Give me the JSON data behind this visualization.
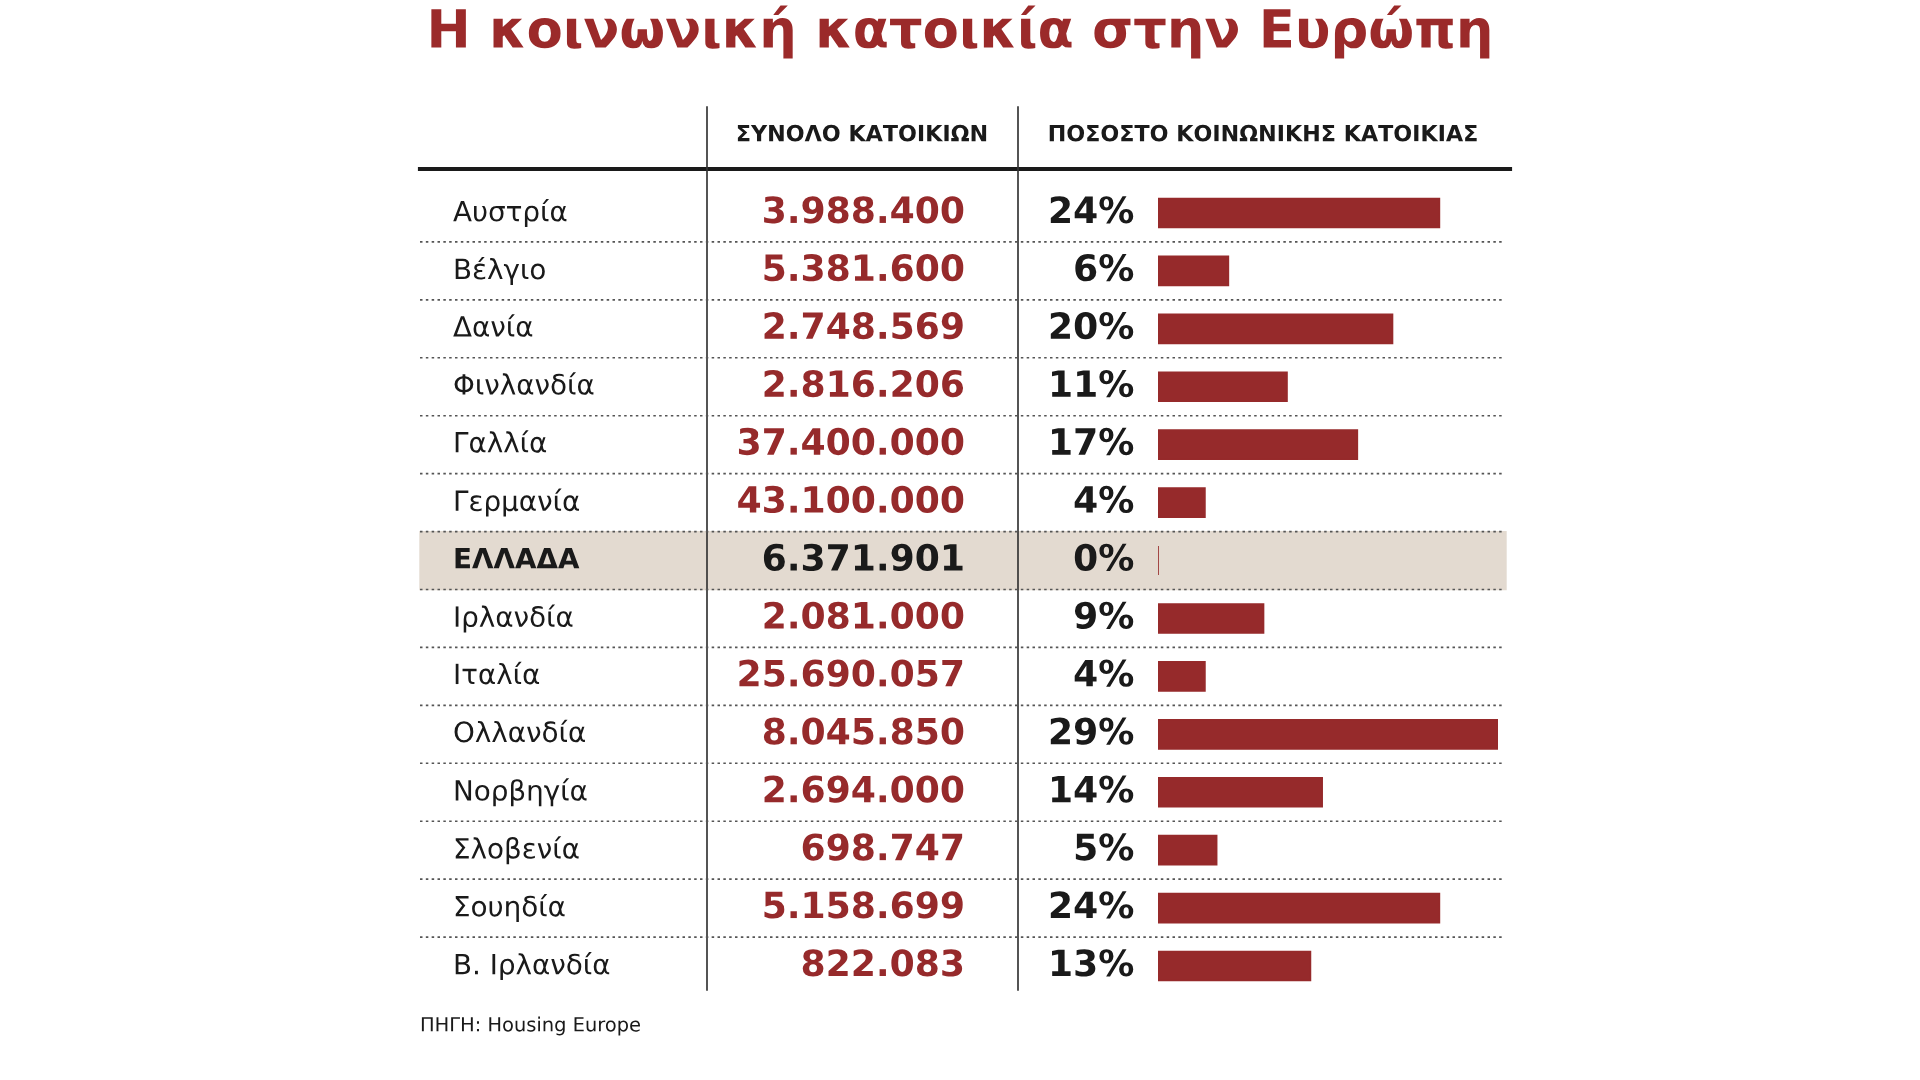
{
  "chart_data": [
    {
      "type": "other",
      "title": "Η κοινωνική κατοικία στην Ευρώπη",
      "xlabel": "ΣΥΝΟΛΟ ΚΑΤΟΙΚΙΩΝ",
      "categories": [
        null,
        null,
        null,
        null,
        null,
        null,
        null,
        null,
        null,
        null,
        null,
        null,
        null,
        null
      ],
      "values": [
        3988400,
        5381600,
        2748569,
        2816206,
        37400000,
        43100000,
        6371901,
        2081000,
        25690057,
        8045850,
        2694000,
        698747,
        5158699,
        822083
      ],
      "value_labels": [
        "3.988.400",
        "5.381.600",
        "2.748.569",
        "2.816.206",
        "37.400.000",
        "43.100.000",
        "6.371.901",
        "2.081.000",
        "25.690.057",
        "8.045.850",
        "2.694.000",
        "698.747",
        "5.158.699",
        "822.083"
      ],
      "colors": [
        "#962a2b",
        "#962a2b",
        "#962a2b",
        "#962a2b",
        "#962a2b",
        "#962a2b",
        "#1a1a1a",
        "#962a2b",
        "#962a2b",
        "#962a2b",
        "#962a2b",
        "#962a2b",
        "#962a2b",
        "#962a2b"
      ],
      "annotations": [
        "ΠΗΓΗ: Housing Europe"
      ]
    },
    {
      "type": "bar",
      "orientation": "horizontal",
      "xlabel": "ΠΟΣΟΣΤΟ ΚΟΙΝΩΝΙΚΗΣ ΚΑΤΟΙΚΙΑΣ",
      "categories": [
        "Αυστρία",
        "Βέλγιο",
        "Δανία",
        "Φινλανδία",
        "Γαλλία",
        "Γερμανία",
        "ΕΛΛΑΔΑ",
        "Ιρλανδία",
        "Ιταλία",
        "Ολλανδία",
        "Νορβηγία",
        "Σλοβενία",
        "Σουηδία",
        "Β. Ιρλανδία"
      ],
      "values": [
        24,
        6,
        20,
        11,
        17,
        4,
        0,
        9,
        4,
        29,
        14,
        5,
        24,
        13
      ],
      "value_labels": [
        "24%",
        "6%",
        "20%",
        "11%",
        "17%",
        "4%",
        "0%",
        "9%",
        "4%",
        "29%",
        "14%",
        "5%",
        "24%",
        "13%"
      ],
      "color": "#962a2b",
      "bands": [
        {
          "axis": "y",
          "from": "ΕΛΛΑΔΑ",
          "to": "ΕΛΛΑΔΑ",
          "color": "#e3dad0"
        }
      ],
      "tick_labels": false,
      "grid": false,
      "legend": false
    }
  ]
}
